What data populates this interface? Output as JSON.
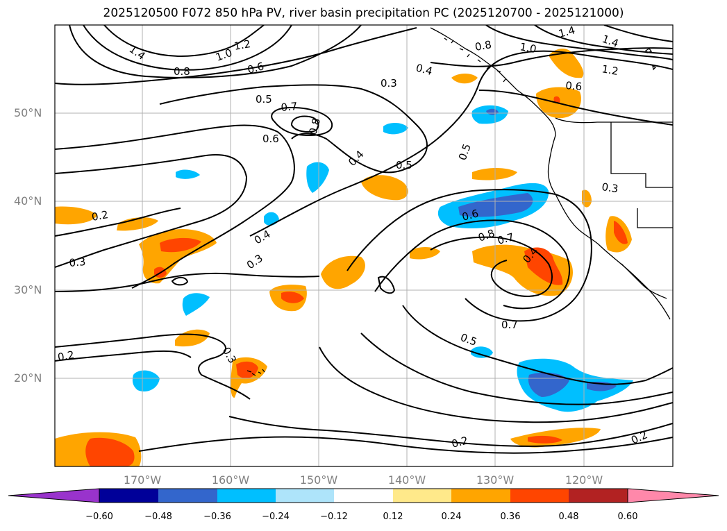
{
  "title": "2025120500 F072 850 hPa PV, river basin precipitation PC (2025120700 - 2025121000)",
  "map": {
    "lon_ticks": [
      {
        "label": "170°W",
        "lon": -170
      },
      {
        "label": "160°W",
        "lon": -160
      },
      {
        "label": "150°W",
        "lon": -150
      },
      {
        "label": "140°W",
        "lon": -140
      },
      {
        "label": "130°W",
        "lon": -130
      },
      {
        "label": "120°W",
        "lon": -120
      }
    ],
    "lat_ticks": [
      {
        "label": "50°N",
        "lat": 50
      },
      {
        "label": "40°N",
        "lat": 40
      },
      {
        "label": "30°N",
        "lat": 30
      },
      {
        "label": "20°N",
        "lat": 20
      }
    ],
    "contour_labels": [
      "1.4",
      "1.2",
      "1.0",
      "0.8",
      "0.7",
      "0.6",
      "0.5",
      "0.4",
      "0.3",
      "0.2",
      "0.8",
      "0.6",
      "0.5",
      "0.4",
      "0.3",
      "0.2",
      "0.7",
      "0.5",
      "0.2",
      "0.2"
    ]
  },
  "colorbar": {
    "tick_labels": [
      "−0.60",
      "−0.48",
      "−0.36",
      "−0.24",
      "−0.12",
      "0.12",
      "0.24",
      "0.36",
      "0.48",
      "0.60"
    ],
    "colors": [
      "#9933cc",
      "#000099",
      "#3366cc",
      "#00bfff",
      "#aee4fa",
      "#ffffff",
      "#ffe98a",
      "#ffa500",
      "#ff4500",
      "#b22222",
      "#ff88aa"
    ]
  }
}
